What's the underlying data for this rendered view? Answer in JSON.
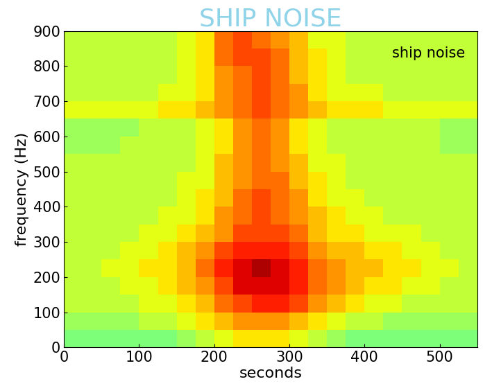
{
  "chart_data": {
    "type": "heatmap",
    "title": "SHIP NOISE",
    "annotation": "ship noise",
    "x_label": "seconds",
    "y_label": "frequency (Hz)",
    "xlim": [
      0,
      550
    ],
    "xticks": [
      0,
      100,
      200,
      300,
      400,
      500
    ],
    "ylim": [
      0,
      900
    ],
    "yticks": [
      0,
      100,
      200,
      300,
      400,
      500,
      600,
      700,
      800,
      900
    ],
    "x": [
      12.5,
      37.5,
      62.5,
      87.5,
      112.5,
      137.5,
      162.5,
      187.5,
      212.5,
      237.5,
      262.5,
      287.5,
      312.5,
      337.5,
      362.5,
      387.5,
      412.5,
      437.5,
      462.5,
      487.5,
      512.5,
      537.5
    ],
    "y": [
      25,
      75,
      125,
      175,
      225,
      275,
      325,
      375,
      425,
      475,
      525,
      575,
      625,
      675,
      725,
      775,
      825,
      875
    ],
    "clim": [
      -2,
      10
    ],
    "values": [
      [
        4,
        4,
        4,
        4,
        4,
        4,
        4.5,
        5,
        5.5,
        6,
        6,
        6,
        5.5,
        5,
        4.5,
        4,
        4,
        4,
        4,
        4,
        4,
        4
      ],
      [
        4.5,
        4.5,
        4.5,
        4.5,
        5,
        5,
        5.5,
        6,
        6.5,
        7,
        7,
        7,
        6.5,
        6,
        5.5,
        5,
        5,
        4.5,
        4.5,
        4.5,
        4.5,
        4.5
      ],
      [
        5,
        5,
        5,
        5,
        5.5,
        5.5,
        6,
        6.5,
        7.5,
        8,
        8.5,
        8.5,
        8,
        7,
        6.5,
        6,
        5.5,
        5.5,
        5,
        5,
        5,
        5
      ],
      [
        5,
        5,
        5,
        5.5,
        5.5,
        6,
        6.5,
        7,
        8,
        9,
        9,
        9,
        8.5,
        7.5,
        7,
        6.5,
        6,
        6,
        5.5,
        5.5,
        5,
        5
      ],
      [
        5,
        5,
        5.5,
        5.5,
        6,
        6,
        6.5,
        7.5,
        8.5,
        9,
        9.5,
        9,
        8.5,
        7.5,
        7,
        6.5,
        6.5,
        6,
        6,
        5.5,
        5.5,
        5
      ],
      [
        5,
        5,
        5,
        5.5,
        5.5,
        6,
        6.5,
        7,
        8,
        8.5,
        8.5,
        8.5,
        8,
        7,
        6.5,
        6.5,
        6,
        6,
        5.5,
        5.5,
        5,
        5
      ],
      [
        5,
        5,
        5,
        5,
        5.5,
        5.5,
        6,
        6.5,
        7,
        8,
        8,
        8,
        7.5,
        6.5,
        6,
        6,
        5.5,
        5.5,
        5.5,
        5,
        5,
        5
      ],
      [
        5,
        5,
        5,
        5,
        5,
        5.5,
        5.5,
        6,
        7,
        7.5,
        8,
        7.5,
        7,
        6.5,
        6,
        5.5,
        5.5,
        5,
        5,
        5,
        5,
        5
      ],
      [
        5,
        5,
        5,
        5,
        5,
        5,
        5.5,
        6,
        6.5,
        7.5,
        8,
        7.5,
        7,
        6,
        5.5,
        5.5,
        5,
        5,
        5,
        5,
        5,
        5
      ],
      [
        5,
        5,
        5,
        5,
        5,
        5,
        5.5,
        5.5,
        6.5,
        7,
        7.5,
        7.5,
        6.5,
        6,
        5.5,
        5,
        5,
        5,
        5,
        5,
        5,
        5
      ],
      [
        5,
        5,
        5,
        5,
        5,
        5,
        5,
        5.5,
        6.5,
        7,
        7.5,
        7,
        6.5,
        5.5,
        5.5,
        5,
        5,
        5,
        5,
        5,
        5,
        5
      ],
      [
        4.5,
        4.5,
        4.5,
        5,
        5,
        5,
        5,
        5.5,
        6,
        7,
        7.5,
        7,
        6,
        5.5,
        5,
        5,
        5,
        5,
        5,
        5,
        4.5,
        4.5
      ],
      [
        4.5,
        4.5,
        4.5,
        4.5,
        5,
        5,
        5,
        5.5,
        6,
        7,
        7.5,
        7,
        6,
        5.5,
        5,
        5,
        5,
        5,
        5,
        5,
        4.5,
        4.5
      ],
      [
        5.5,
        5.5,
        5.5,
        5.5,
        5.5,
        6,
        6,
        6.5,
        7,
        7.5,
        8,
        7.5,
        7,
        6.5,
        6,
        6,
        6,
        5.5,
        5.5,
        5.5,
        5.5,
        5.5
      ],
      [
        5,
        5,
        5,
        5,
        5,
        5.5,
        5.5,
        6,
        7,
        7.5,
        8,
        7.5,
        7,
        6,
        5.5,
        5.5,
        5.5,
        5,
        5,
        5,
        5,
        5
      ],
      [
        5,
        5,
        5,
        5,
        5,
        5,
        5.5,
        6,
        7,
        7.5,
        8,
        7.5,
        6.5,
        6,
        5.5,
        5,
        5,
        5,
        5,
        5,
        5,
        5
      ],
      [
        5,
        5,
        5,
        5,
        5,
        5,
        5.5,
        6,
        7.5,
        8,
        8,
        7.5,
        6.5,
        6,
        5.5,
        5,
        5,
        5,
        5,
        5,
        5,
        5
      ],
      [
        5,
        5,
        5,
        5,
        5,
        5,
        5.5,
        6,
        7.5,
        8,
        7.5,
        7,
        6.5,
        5.5,
        5.5,
        5,
        5,
        5,
        5,
        5,
        5,
        5
      ]
    ]
  }
}
